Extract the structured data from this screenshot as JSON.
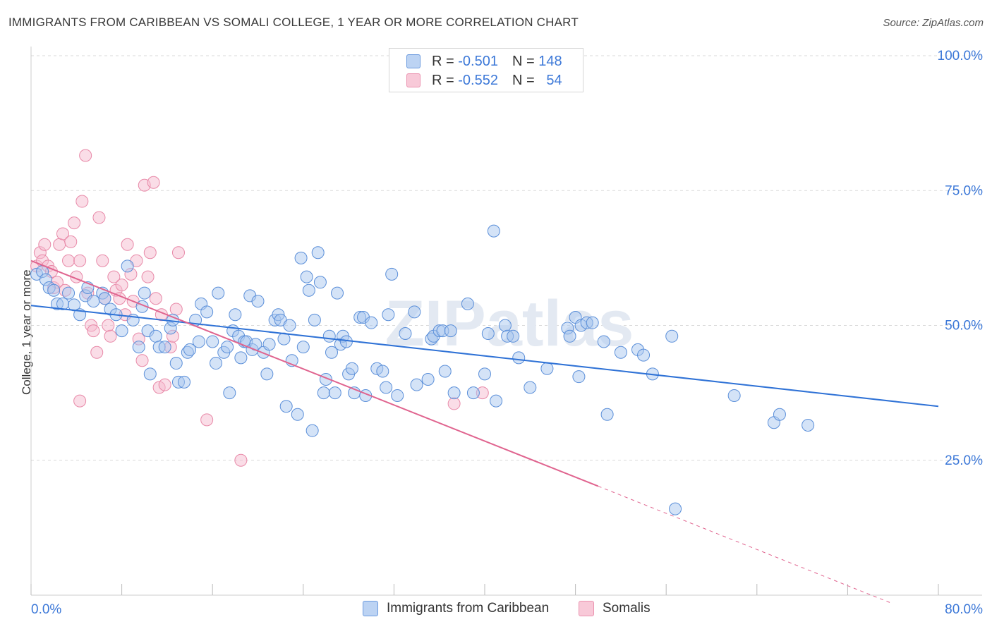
{
  "title": "IMMIGRANTS FROM CARIBBEAN VS SOMALI COLLEGE, 1 YEAR OR MORE CORRELATION CHART",
  "source": "Source: ZipAtlas.com",
  "watermark": "ZIPatlas",
  "legend": {
    "r_label": "R =",
    "n_label": "N =",
    "entries": [
      {
        "r": "-0.501",
        "n": "148"
      },
      {
        "r": "-0.552",
        "n": "54"
      }
    ]
  },
  "colors": {
    "caribbean_fill": "#a9c7f0",
    "caribbean_stroke": "#5b8fd9",
    "caribbean_line": "#2f72d6",
    "somali_fill": "#f6bccf",
    "somali_stroke": "#e889a8",
    "somali_line": "#e0648f",
    "tick_label": "#3c78d8",
    "grid": "#d9d9d9"
  },
  "chart_data": {
    "type": "scatter",
    "title": "IMMIGRANTS FROM CARIBBEAN VS SOMALI COLLEGE, 1 YEAR OR MORE CORRELATION CHART",
    "xlabel": "",
    "ylabel": "College, 1 year or more",
    "xlim": [
      0,
      80
    ],
    "ylim": [
      0,
      100
    ],
    "x_tick_labels": [
      "0.0%",
      "80.0%"
    ],
    "y_tick_labels": [
      {
        "value": 100,
        "label": "100.0%"
      },
      {
        "value": 75,
        "label": "75.0%"
      },
      {
        "value": 50,
        "label": "50.0%"
      },
      {
        "value": 25,
        "label": "25.0%"
      }
    ],
    "grid": true,
    "legend_position": "bottom",
    "series": [
      {
        "name": "Immigrants from Caribbean",
        "r": -0.501,
        "n": 148,
        "trend": {
          "x0": 0,
          "y0": 53.7,
          "x1": 80,
          "y1": 35.0
        },
        "points": [
          [
            0.5,
            59.5
          ],
          [
            1,
            60
          ],
          [
            1.3,
            58.5
          ],
          [
            1.6,
            57
          ],
          [
            2,
            56.5
          ],
          [
            2.3,
            54
          ],
          [
            2.8,
            54
          ],
          [
            3.3,
            56
          ],
          [
            3.8,
            53.8
          ],
          [
            4.3,
            52
          ],
          [
            4.8,
            55.5
          ],
          [
            5,
            57
          ],
          [
            5.5,
            54.5
          ],
          [
            6.3,
            56
          ],
          [
            6.5,
            55
          ],
          [
            7,
            53
          ],
          [
            7.5,
            52
          ],
          [
            8,
            49
          ],
          [
            8.5,
            61
          ],
          [
            9,
            51
          ],
          [
            9.5,
            46
          ],
          [
            9.8,
            53.5
          ],
          [
            10,
            56
          ],
          [
            10.3,
            49
          ],
          [
            10.5,
            41
          ],
          [
            11,
            48
          ],
          [
            11.3,
            46
          ],
          [
            11.8,
            46
          ],
          [
            12.3,
            49.5
          ],
          [
            12.5,
            51
          ],
          [
            12.8,
            43
          ],
          [
            13,
            39.5
          ],
          [
            13.5,
            39.5
          ],
          [
            13.8,
            45
          ],
          [
            14,
            45.5
          ],
          [
            14.5,
            51
          ],
          [
            14.8,
            47
          ],
          [
            15,
            54
          ],
          [
            15.5,
            52.5
          ],
          [
            16,
            47
          ],
          [
            16.3,
            43
          ],
          [
            16.5,
            56
          ],
          [
            17,
            45
          ],
          [
            17.3,
            46
          ],
          [
            17.5,
            37.5
          ],
          [
            17.8,
            49
          ],
          [
            18,
            52
          ],
          [
            18.3,
            48
          ],
          [
            18.5,
            44
          ],
          [
            18.8,
            47
          ],
          [
            19,
            47
          ],
          [
            19.3,
            55.5
          ],
          [
            19.5,
            45.5
          ],
          [
            19.8,
            46.5
          ],
          [
            20,
            54.5
          ],
          [
            20.5,
            45
          ],
          [
            20.8,
            41
          ],
          [
            21,
            46.5
          ],
          [
            21.5,
            51
          ],
          [
            21.8,
            52
          ],
          [
            22,
            51
          ],
          [
            22.3,
            47.5
          ],
          [
            22.5,
            35
          ],
          [
            22.8,
            50
          ],
          [
            23,
            43.5
          ],
          [
            23.5,
            33.5
          ],
          [
            23.8,
            62.5
          ],
          [
            24,
            46
          ],
          [
            24.3,
            59
          ],
          [
            24.5,
            56.5
          ],
          [
            24.8,
            30.5
          ],
          [
            25,
            51
          ],
          [
            25.3,
            63.5
          ],
          [
            25.5,
            58
          ],
          [
            25.8,
            37.5
          ],
          [
            26,
            40
          ],
          [
            26.3,
            48
          ],
          [
            26.5,
            45
          ],
          [
            26.8,
            37.5
          ],
          [
            27,
            56
          ],
          [
            27.3,
            46.5
          ],
          [
            27.5,
            48
          ],
          [
            27.8,
            47
          ],
          [
            28,
            41
          ],
          [
            28.3,
            42
          ],
          [
            28.5,
            37.5
          ],
          [
            29,
            51.5
          ],
          [
            29.3,
            51.5
          ],
          [
            29.5,
            37
          ],
          [
            30,
            50.5
          ],
          [
            30.5,
            42
          ],
          [
            31,
            41.5
          ],
          [
            31.3,
            38.5
          ],
          [
            31.5,
            52
          ],
          [
            31.8,
            59.5
          ],
          [
            32.3,
            37
          ],
          [
            33,
            48.5
          ],
          [
            33.8,
            52.5
          ],
          [
            34,
            39
          ],
          [
            35,
            40
          ],
          [
            35.3,
            47.5
          ],
          [
            35.5,
            48
          ],
          [
            36,
            49
          ],
          [
            36.3,
            49
          ],
          [
            36.5,
            41.5
          ],
          [
            37,
            49
          ],
          [
            37.3,
            37.5
          ],
          [
            38.5,
            54
          ],
          [
            39,
            37.5
          ],
          [
            40,
            41
          ],
          [
            40.3,
            48.5
          ],
          [
            40.8,
            67.5
          ],
          [
            41,
            36
          ],
          [
            41.8,
            50
          ],
          [
            42,
            48
          ],
          [
            42.5,
            48
          ],
          [
            43,
            44
          ],
          [
            44,
            38.5
          ],
          [
            45.5,
            42
          ],
          [
            47.3,
            49.5
          ],
          [
            47.5,
            48
          ],
          [
            48,
            51.5
          ],
          [
            48.3,
            40.5
          ],
          [
            48.5,
            50
          ],
          [
            49,
            50.5
          ],
          [
            49.5,
            50.5
          ],
          [
            50.5,
            47
          ],
          [
            50.8,
            33.5
          ],
          [
            52,
            45
          ],
          [
            53.5,
            45.5
          ],
          [
            54,
            44.5
          ],
          [
            54.8,
            41
          ],
          [
            56.5,
            48
          ],
          [
            56.8,
            16
          ],
          [
            62,
            37
          ],
          [
            65.5,
            32
          ],
          [
            66,
            33.5
          ],
          [
            68.5,
            31.5
          ]
        ]
      },
      {
        "name": "Somalis",
        "r": -0.552,
        "n": 54,
        "trend": {
          "x0": 0,
          "y0": 62.0,
          "x1": 50,
          "y1": 20.2,
          "dashed_to_x": 76,
          "dashed_to_y": -1.6
        },
        "points": [
          [
            0.5,
            61
          ],
          [
            0.8,
            63.5
          ],
          [
            1,
            62
          ],
          [
            1.2,
            65
          ],
          [
            1.5,
            61
          ],
          [
            1.8,
            60
          ],
          [
            2,
            57
          ],
          [
            2.3,
            58
          ],
          [
            2.5,
            65
          ],
          [
            2.8,
            67
          ],
          [
            3,
            56.5
          ],
          [
            3.3,
            62
          ],
          [
            3.5,
            65.5
          ],
          [
            3.8,
            69
          ],
          [
            4,
            59
          ],
          [
            4.3,
            62
          ],
          [
            4.5,
            73
          ],
          [
            4.8,
            81.5
          ],
          [
            5,
            56
          ],
          [
            5.3,
            50
          ],
          [
            5.5,
            49
          ],
          [
            5.8,
            45
          ],
          [
            6,
            70
          ],
          [
            6.3,
            62
          ],
          [
            6.5,
            55
          ],
          [
            6.8,
            50
          ],
          [
            7,
            48
          ],
          [
            7.3,
            59
          ],
          [
            7.5,
            56.5
          ],
          [
            7.8,
            55
          ],
          [
            8,
            57.5
          ],
          [
            8.3,
            52
          ],
          [
            8.5,
            65
          ],
          [
            8.8,
            59.5
          ],
          [
            9,
            54.5
          ],
          [
            9.3,
            62
          ],
          [
            9.5,
            47.5
          ],
          [
            9.8,
            43.5
          ],
          [
            10,
            76
          ],
          [
            10.3,
            59
          ],
          [
            10.5,
            63.5
          ],
          [
            10.8,
            76.5
          ],
          [
            11,
            55
          ],
          [
            11.3,
            38.5
          ],
          [
            11.5,
            52
          ],
          [
            11.8,
            39
          ],
          [
            12.3,
            46
          ],
          [
            12.5,
            48
          ],
          [
            12.8,
            53
          ],
          [
            13,
            63.5
          ],
          [
            4.3,
            36
          ],
          [
            15.5,
            32.5
          ],
          [
            18.5,
            25
          ],
          [
            37.3,
            35.5
          ],
          [
            39.8,
            37.5
          ]
        ]
      }
    ]
  }
}
